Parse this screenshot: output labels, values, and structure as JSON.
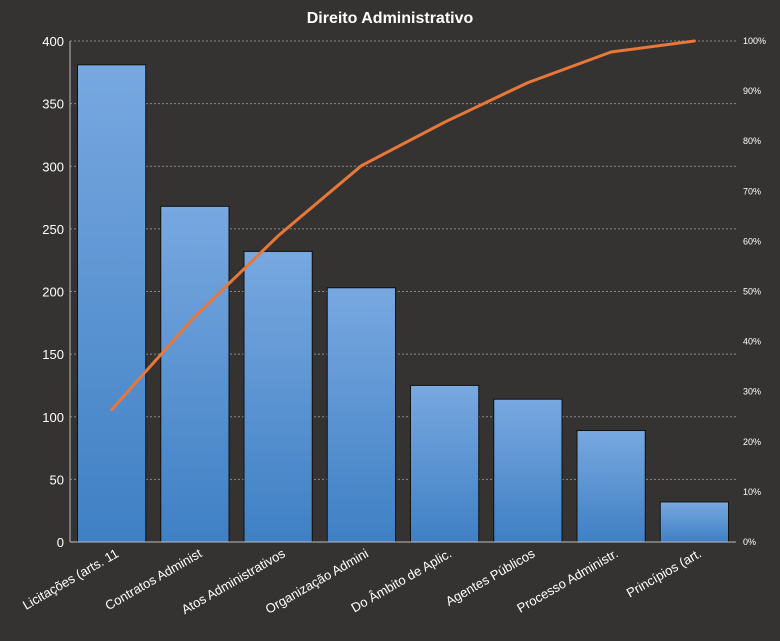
{
  "chart_data": {
    "type": "bar",
    "title": "Direito  Administrativo",
    "categories": [
      "Licitações (arts. 11",
      "Contratos Administ",
      "Atos Administrativos",
      "Organização Admini",
      "Do Âmbito de Aplic.",
      "Agentes Públicos",
      "Processo Administr.",
      "Princípios (art."
    ],
    "series": [
      {
        "type": "bar",
        "axis": "left",
        "values": [
          381,
          268,
          232,
          203,
          125,
          114,
          89,
          32
        ]
      },
      {
        "type": "line",
        "axis": "right",
        "values": [
          26.4,
          45.0,
          61.1,
          75.1,
          83.8,
          91.7,
          97.8,
          100.0
        ]
      }
    ],
    "ylim": [
      0,
      400
    ],
    "yticks": [
      0,
      50,
      100,
      150,
      200,
      250,
      300,
      350,
      400
    ],
    "y2lim": [
      0,
      100
    ],
    "y2ticks": [
      "0%",
      "10%",
      "20%",
      "30%",
      "40%",
      "50%",
      "60%",
      "70%",
      "80%",
      "90%",
      "100%"
    ],
    "grid": true,
    "colors": {
      "background": "#353331",
      "bar_top": "#78a8e0",
      "bar_bottom": "#3f80c4",
      "line": "#e8773a",
      "grid": "#8a8a8a",
      "text": "#ffffff"
    }
  }
}
